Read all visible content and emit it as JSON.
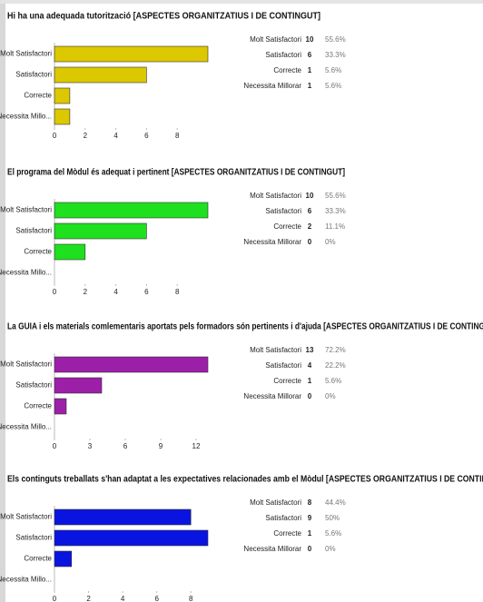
{
  "chart_data": [
    {
      "type": "bar",
      "orientation": "horizontal",
      "title": "Hi ha una adequada tutorització [ASPECTES ORGANITZATIUS I DE CONTINGUT]",
      "categories": [
        "Molt Satisfactori",
        "Satisfactori",
        "Correcte",
        "Necessita Millo..."
      ],
      "values": [
        10,
        6,
        1,
        1
      ],
      "color": "#dcc800",
      "xlim": [
        0,
        10
      ],
      "xticks": [
        0,
        2,
        4,
        6,
        8
      ],
      "table_labels": [
        "Molt Satisfactori",
        "Satisfactori",
        "Correcte",
        "Necessita Millorar"
      ],
      "percent_labels": [
        "55.6%",
        "33.3%",
        "5.6%",
        "5.6%"
      ]
    },
    {
      "type": "bar",
      "orientation": "horizontal",
      "title": "El programa del Mòdul és adequat i pertinent [ASPECTES ORGANITZATIUS I DE CONTINGUT]",
      "categories": [
        "Molt Satisfactori",
        "Satisfactori",
        "Correcte",
        "Necessita Millo..."
      ],
      "values": [
        10,
        6,
        2,
        0
      ],
      "color": "#1ee01e",
      "xlim": [
        0,
        10
      ],
      "xticks": [
        0,
        2,
        4,
        6,
        8
      ],
      "table_labels": [
        "Molt Satisfactori",
        "Satisfactori",
        "Correcte",
        "Necessita Millorar"
      ],
      "percent_labels": [
        "55.6%",
        "33.3%",
        "11.1%",
        "0%"
      ]
    },
    {
      "type": "bar",
      "orientation": "horizontal",
      "title": "La GUIA  i els materials comlementaris aportats pels formadors són pertinents i d'ajuda [ASPECTES ORGANITZATIUS I DE CONTINGUT]",
      "categories": [
        "Molt Satisfactori",
        "Satisfactori",
        "Correcte",
        "Necessita Millo..."
      ],
      "values": [
        13,
        4,
        1,
        0
      ],
      "color": "#9c1fa8",
      "xlim": [
        0,
        13
      ],
      "xticks": [
        0,
        3,
        6,
        9,
        12
      ],
      "table_labels": [
        "Molt Satisfactori",
        "Satisfactori",
        "Correcte",
        "Necessita Millorar"
      ],
      "percent_labels": [
        "72.2%",
        "22.2%",
        "5.6%",
        "0%"
      ]
    },
    {
      "type": "bar",
      "orientation": "horizontal",
      "title": "Els continguts treballats s'han adaptat a les expectatives relacionades amb el Mòdul  [ASPECTES ORGANITZATIUS I DE CONTINGUT]",
      "categories": [
        "Molt Satisfactori",
        "Satisfactori",
        "Correcte",
        "Necessita Millo..."
      ],
      "values": [
        8,
        9,
        1,
        0
      ],
      "color": "#0a14e0",
      "xlim": [
        0,
        9
      ],
      "xticks": [
        0,
        2,
        4,
        6,
        8
      ],
      "table_labels": [
        "Molt Satisfactori",
        "Satisfactori",
        "Correcte",
        "Necessita Millorar"
      ],
      "percent_labels": [
        "44.4%",
        "50%",
        "5.6%",
        "0%"
      ]
    }
  ]
}
